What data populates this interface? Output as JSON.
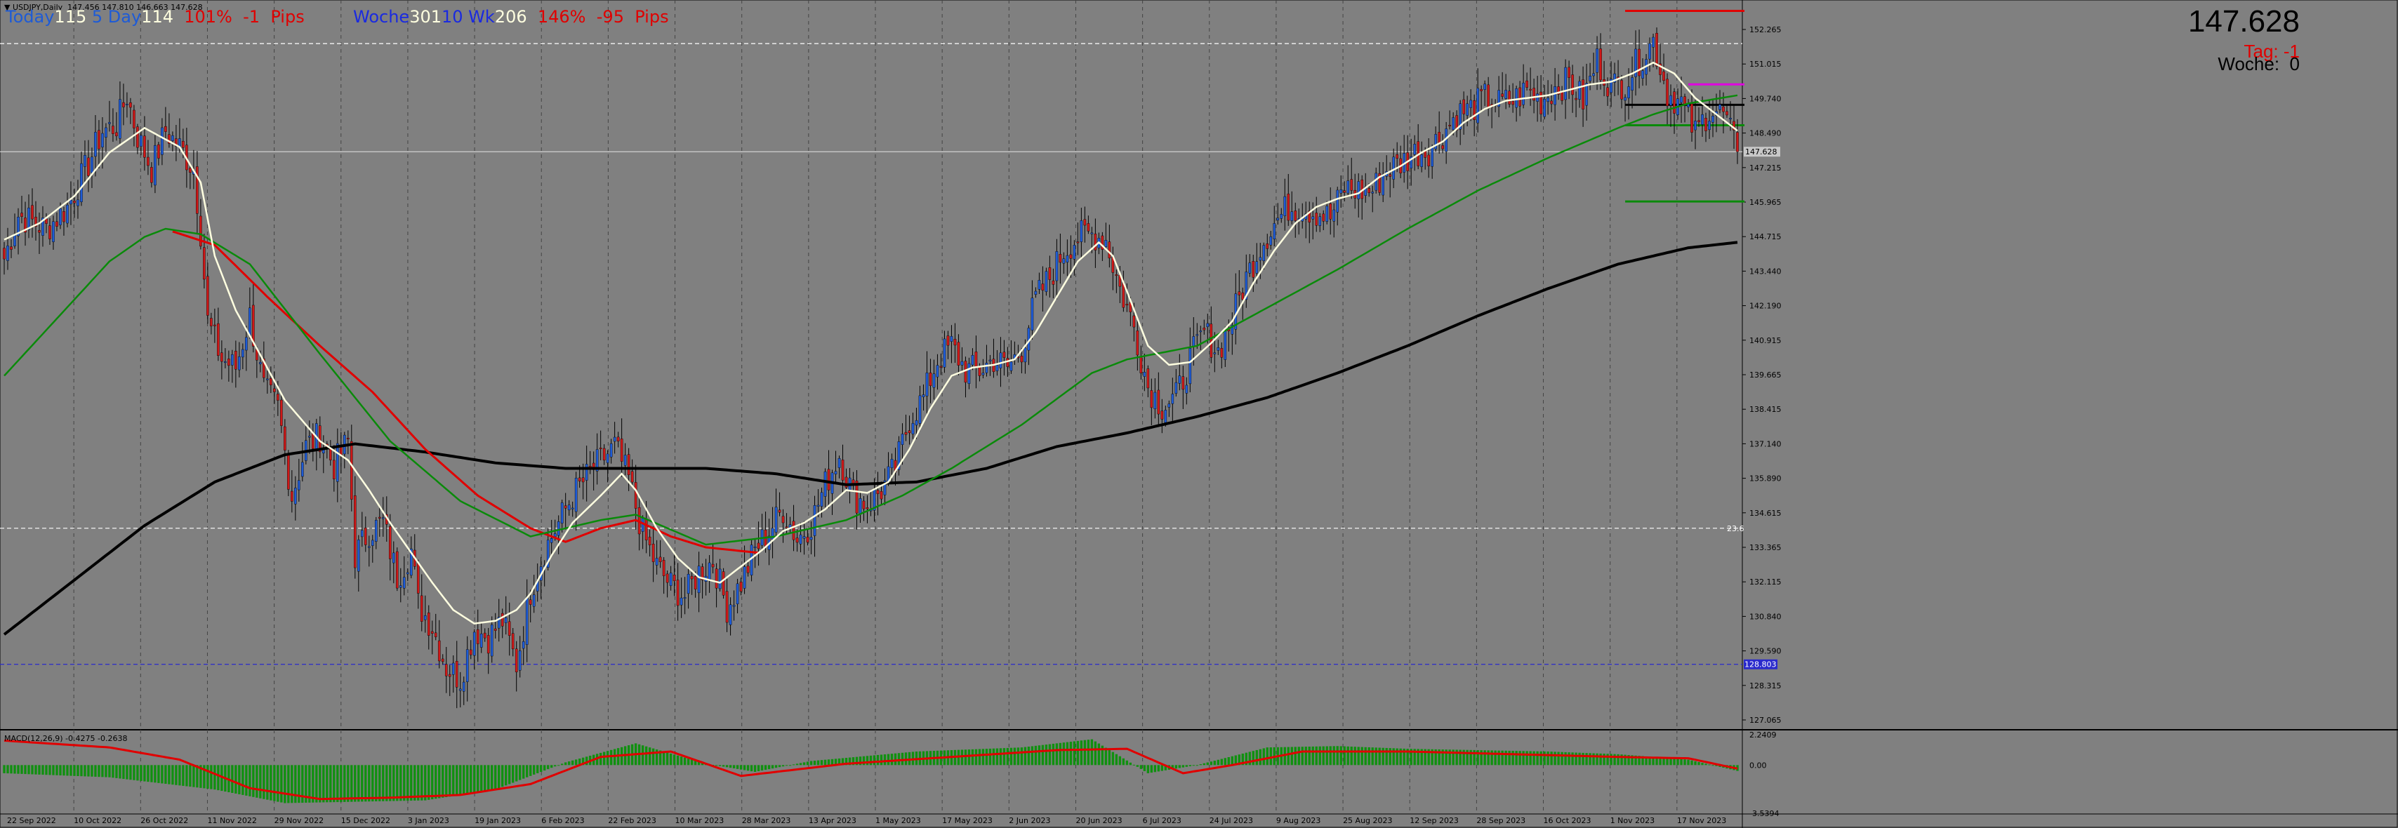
{
  "header": {
    "symbol_line": "▼ USDJPY,Daily  147.456 147.810 146.663 147.628",
    "today_label": "Today",
    "today_value": "115",
    "five_day_label": "5 Day",
    "five_day_value": "114",
    "today_pct": "101%",
    "today_pips": "-1",
    "pips_label": "Pips",
    "woche_label": "Woche",
    "woche_value": "301",
    "ten_wk_label": "10 Wk",
    "ten_wk_value": "206",
    "week_pct": "146%",
    "week_pips": "-95",
    "pips_label2": "Pips"
  },
  "right_panel": {
    "price": "147.628",
    "tag_text": "Tag: -1",
    "woche_text": "Woche:  0"
  },
  "macd_label": "MACD(12,26,9) -0.4275 -0.2638",
  "colors": {
    "background": "#808080",
    "bull": "#1e5bd6",
    "bear": "#d01818",
    "ma_fast": "#ffffe0",
    "ma_mid": "#0a8a0a",
    "ma_red": "#e00000",
    "ma_long": "#000000",
    "macd_hist": "#109010",
    "macd_signal": "#e00000"
  },
  "chart_data": {
    "type": "candlestick",
    "symbol": "USDJPY",
    "timeframe": "Daily",
    "last_price": 147.628,
    "ylim": [
      126.4,
      153.2
    ],
    "y_ticks": [
      "152.265",
      "151.015",
      "149.740",
      "148.490",
      "147.215",
      "145.965",
      "144.715",
      "143.440",
      "142.190",
      "140.915",
      "139.665",
      "138.415",
      "137.140",
      "135.890",
      "134.615",
      "133.365",
      "132.115",
      "130.840",
      "129.590",
      "128.315",
      "127.065"
    ],
    "x_ticks": [
      "22 Sep 2022",
      "10 Oct 2022",
      "26 Oct 2022",
      "11 Nov 2022",
      "29 Nov 2022",
      "15 Dec 2022",
      "3 Jan 2023",
      "19 Jan 2023",
      "6 Feb 2023",
      "22 Feb 2023",
      "10 Mar 2023",
      "28 Mar 2023",
      "13 Apr 2023",
      "1 May 2023",
      "17 May 2023",
      "2 Jun 2023",
      "20 Jun 2023",
      "6 Jul 2023",
      "24 Jul 2023",
      "9 Aug 2023",
      "25 Aug 2023",
      "12 Sep 2023",
      "28 Sep 2023",
      "16 Oct 2023",
      "1 Nov 2023",
      "17 Nov 2023"
    ],
    "price_path_anchors": [
      [
        0,
        143.7
      ],
      [
        4,
        145.3
      ],
      [
        12,
        144.8
      ],
      [
        18,
        145.6
      ],
      [
        24,
        147.2
      ],
      [
        28,
        148.4
      ],
      [
        32,
        148.6
      ],
      [
        35,
        149.7
      ],
      [
        38,
        148.2
      ],
      [
        42,
        147.0
      ],
      [
        46,
        148.4
      ],
      [
        50,
        147.8
      ],
      [
        54,
        147.0
      ],
      [
        56,
        144.7
      ],
      [
        58,
        141.4
      ],
      [
        62,
        140.0
      ],
      [
        66,
        139.7
      ],
      [
        70,
        141.6
      ],
      [
        74,
        138.9
      ],
      [
        78,
        138.2
      ],
      [
        82,
        135.0
      ],
      [
        86,
        136.8
      ],
      [
        90,
        137.2
      ],
      [
        94,
        136.1
      ],
      [
        98,
        137.0
      ],
      [
        100,
        132.8
      ],
      [
        104,
        133.7
      ],
      [
        108,
        134.0
      ],
      [
        112,
        132.0
      ],
      [
        116,
        133.0
      ],
      [
        118,
        131.0
      ],
      [
        122,
        130.2
      ],
      [
        126,
        128.7
      ],
      [
        130,
        128.3
      ],
      [
        134,
        130.1
      ],
      [
        138,
        129.8
      ],
      [
        142,
        130.4
      ],
      [
        146,
        128.8
      ],
      [
        150,
        131.5
      ],
      [
        154,
        133.0
      ],
      [
        158,
        134.0
      ],
      [
        162,
        135.0
      ],
      [
        168,
        136.0
      ],
      [
        174,
        136.8
      ],
      [
        178,
        135.6
      ],
      [
        182,
        133.6
      ],
      [
        186,
        132.4
      ],
      [
        190,
        131.7
      ],
      [
        194,
        131.3
      ],
      [
        198,
        132.2
      ],
      [
        202,
        132.6
      ],
      [
        206,
        130.9
      ],
      [
        210,
        131.8
      ],
      [
        214,
        133.0
      ],
      [
        218,
        133.7
      ],
      [
        222,
        134.5
      ],
      [
        226,
        133.4
      ],
      [
        230,
        134.0
      ],
      [
        234,
        135.4
      ],
      [
        238,
        136.5
      ],
      [
        242,
        135.0
      ],
      [
        246,
        134.7
      ],
      [
        250,
        135.2
      ],
      [
        254,
        136.0
      ],
      [
        258,
        137.8
      ],
      [
        262,
        138.6
      ],
      [
        266,
        140.0
      ],
      [
        270,
        140.5
      ],
      [
        274,
        139.6
      ],
      [
        278,
        139.6
      ],
      [
        282,
        140.0
      ],
      [
        286,
        139.7
      ],
      [
        290,
        140.4
      ],
      [
        294,
        142.2
      ],
      [
        298,
        143.0
      ],
      [
        302,
        144.0
      ],
      [
        306,
        144.5
      ],
      [
        310,
        144.6
      ],
      [
        314,
        144.4
      ],
      [
        318,
        142.6
      ],
      [
        322,
        141.2
      ],
      [
        326,
        139.0
      ],
      [
        330,
        138.3
      ],
      [
        334,
        138.6
      ],
      [
        338,
        140.0
      ],
      [
        342,
        141.0
      ],
      [
        346,
        140.3
      ],
      [
        350,
        141.5
      ],
      [
        354,
        143.0
      ],
      [
        358,
        144.2
      ],
      [
        362,
        145.0
      ],
      [
        366,
        145.6
      ],
      [
        370,
        145.6
      ],
      [
        374,
        145.4
      ],
      [
        378,
        145.2
      ],
      [
        382,
        146.3
      ],
      [
        386,
        146.2
      ],
      [
        390,
        146.2
      ],
      [
        394,
        147.0
      ],
      [
        398,
        147.2
      ],
      [
        402,
        147.6
      ],
      [
        406,
        147.7
      ],
      [
        410,
        148.3
      ],
      [
        414,
        149.0
      ],
      [
        418,
        149.2
      ],
      [
        422,
        149.6
      ],
      [
        426,
        149.4
      ],
      [
        430,
        149.5
      ],
      [
        434,
        149.9
      ],
      [
        438,
        149.5
      ],
      [
        442,
        150.0
      ],
      [
        446,
        150.2
      ],
      [
        450,
        149.5
      ],
      [
        454,
        151.0
      ],
      [
        458,
        150.0
      ],
      [
        462,
        150.2
      ],
      [
        466,
        151.0
      ],
      [
        470,
        151.7
      ],
      [
        474,
        149.8
      ],
      [
        478,
        149.4
      ],
      [
        482,
        148.3
      ],
      [
        486,
        149.2
      ],
      [
        490,
        149.0
      ],
      [
        494,
        147.6
      ]
    ],
    "ma_fast_anchors": [
      [
        0,
        144.4
      ],
      [
        10,
        145.0
      ],
      [
        20,
        146.0
      ],
      [
        30,
        147.6
      ],
      [
        40,
        148.5
      ],
      [
        50,
        147.8
      ],
      [
        56,
        146.5
      ],
      [
        60,
        143.8
      ],
      [
        66,
        141.8
      ],
      [
        72,
        140.4
      ],
      [
        80,
        138.5
      ],
      [
        90,
        137.0
      ],
      [
        98,
        136.3
      ],
      [
        104,
        135.2
      ],
      [
        110,
        134.0
      ],
      [
        116,
        132.9
      ],
      [
        122,
        131.8
      ],
      [
        128,
        130.8
      ],
      [
        134,
        130.3
      ],
      [
        140,
        130.4
      ],
      [
        146,
        130.8
      ],
      [
        150,
        131.4
      ],
      [
        156,
        132.8
      ],
      [
        162,
        134.0
      ],
      [
        170,
        135.0
      ],
      [
        176,
        135.8
      ],
      [
        180,
        135.2
      ],
      [
        186,
        133.8
      ],
      [
        192,
        132.7
      ],
      [
        198,
        132.0
      ],
      [
        204,
        131.8
      ],
      [
        210,
        132.4
      ],
      [
        216,
        133.0
      ],
      [
        222,
        133.7
      ],
      [
        228,
        134.0
      ],
      [
        234,
        134.5
      ],
      [
        240,
        135.2
      ],
      [
        246,
        135.1
      ],
      [
        252,
        135.5
      ],
      [
        258,
        136.7
      ],
      [
        264,
        138.2
      ],
      [
        270,
        139.4
      ],
      [
        276,
        139.7
      ],
      [
        282,
        139.8
      ],
      [
        288,
        140.0
      ],
      [
        294,
        141.0
      ],
      [
        300,
        142.3
      ],
      [
        306,
        143.6
      ],
      [
        312,
        144.3
      ],
      [
        316,
        143.8
      ],
      [
        320,
        142.5
      ],
      [
        326,
        140.5
      ],
      [
        332,
        139.8
      ],
      [
        338,
        139.9
      ],
      [
        344,
        140.6
      ],
      [
        350,
        141.4
      ],
      [
        356,
        142.8
      ],
      [
        362,
        144.0
      ],
      [
        368,
        145.0
      ],
      [
        374,
        145.6
      ],
      [
        380,
        145.9
      ],
      [
        386,
        146.1
      ],
      [
        392,
        146.7
      ],
      [
        398,
        147.1
      ],
      [
        404,
        147.6
      ],
      [
        410,
        148.0
      ],
      [
        416,
        148.7
      ],
      [
        422,
        149.2
      ],
      [
        428,
        149.5
      ],
      [
        434,
        149.6
      ],
      [
        440,
        149.7
      ],
      [
        446,
        149.9
      ],
      [
        452,
        150.1
      ],
      [
        458,
        150.2
      ],
      [
        464,
        150.5
      ],
      [
        470,
        150.9
      ],
      [
        476,
        150.5
      ],
      [
        482,
        149.6
      ],
      [
        488,
        149.0
      ],
      [
        494,
        148.4
      ]
    ],
    "ma_mid_anchors": [
      [
        0,
        139.4
      ],
      [
        10,
        140.8
      ],
      [
        20,
        142.2
      ],
      [
        30,
        143.6
      ],
      [
        40,
        144.5
      ],
      [
        46,
        144.8
      ],
      [
        56,
        144.6
      ],
      [
        70,
        143.5
      ],
      [
        90,
        140.2
      ],
      [
        110,
        137.0
      ],
      [
        130,
        134.8
      ],
      [
        150,
        133.5
      ],
      [
        170,
        134.1
      ],
      [
        180,
        134.3
      ],
      [
        200,
        133.2
      ],
      [
        220,
        133.5
      ],
      [
        240,
        134.1
      ],
      [
        256,
        135.0
      ],
      [
        270,
        136.0
      ],
      [
        290,
        137.6
      ],
      [
        310,
        139.5
      ],
      [
        320,
        140.0
      ],
      [
        340,
        140.5
      ],
      [
        360,
        141.9
      ],
      [
        380,
        143.3
      ],
      [
        400,
        144.8
      ],
      [
        420,
        146.2
      ],
      [
        440,
        147.4
      ],
      [
        460,
        148.5
      ],
      [
        470,
        149.0
      ],
      [
        480,
        149.4
      ],
      [
        494,
        149.7
      ]
    ],
    "ma_red_anchors": [
      [
        48,
        144.7
      ],
      [
        60,
        144.2
      ],
      [
        75,
        142.3
      ],
      [
        90,
        140.5
      ],
      [
        105,
        138.8
      ],
      [
        120,
        136.7
      ],
      [
        135,
        135.0
      ],
      [
        150,
        133.8
      ],
      [
        160,
        133.3
      ],
      [
        170,
        133.8
      ],
      [
        180,
        134.1
      ],
      [
        190,
        133.5
      ],
      [
        200,
        133.1
      ],
      [
        215,
        132.9
      ]
    ],
    "ma_long_anchors": [
      [
        0,
        129.9
      ],
      [
        20,
        131.9
      ],
      [
        40,
        133.9
      ],
      [
        60,
        135.5
      ],
      [
        80,
        136.5
      ],
      [
        100,
        136.9
      ],
      [
        120,
        136.6
      ],
      [
        140,
        136.2
      ],
      [
        160,
        136.0
      ],
      [
        180,
        136.0
      ],
      [
        200,
        136.0
      ],
      [
        220,
        135.8
      ],
      [
        240,
        135.4
      ],
      [
        260,
        135.5
      ],
      [
        280,
        136.0
      ],
      [
        300,
        136.8
      ],
      [
        320,
        137.3
      ],
      [
        340,
        137.9
      ],
      [
        360,
        138.6
      ],
      [
        380,
        139.5
      ],
      [
        400,
        140.5
      ],
      [
        420,
        141.6
      ],
      [
        440,
        142.6
      ],
      [
        460,
        143.5
      ],
      [
        480,
        144.1
      ],
      [
        494,
        144.3
      ]
    ],
    "levels": [
      {
        "price": 152.8,
        "color": "#e00000",
        "from": 462,
        "to": 494
      },
      {
        "price": 151.6,
        "color": "#ffffff",
        "dashed": true
      },
      {
        "price": 150.1,
        "color": "#e000e0",
        "from": 480,
        "to": 494
      },
      {
        "price": 149.35,
        "color": "#000000",
        "from": 462,
        "to": 494
      },
      {
        "price": 148.6,
        "color": "#0a8a0a",
        "from": 462,
        "to": 494
      },
      {
        "price": 147.628,
        "color": "#d0d0d0",
        "dashed": false
      },
      {
        "price": 145.8,
        "color": "#0a8a0a",
        "from": 462,
        "to": 494
      },
      {
        "price": 133.8,
        "color": "#ffffff",
        "dashed": true,
        "label": "23.6"
      },
      {
        "price": 128.803,
        "color": "#2a2acc",
        "dashed": true,
        "label": "128.803"
      }
    ],
    "macd": {
      "label": "MACD(12,26,9) -0.4275 -0.2638",
      "ylim": [
        -3.6,
        2.6
      ],
      "y_ticks": [
        "2.2409",
        "0.00",
        "-3.5394"
      ],
      "hist_anchors": [
        [
          0,
          -0.6
        ],
        [
          30,
          -0.9
        ],
        [
          60,
          -1.8
        ],
        [
          80,
          -2.8
        ],
        [
          100,
          -2.7
        ],
        [
          120,
          -2.6
        ],
        [
          140,
          -1.8
        ],
        [
          160,
          0.2
        ],
        [
          180,
          1.6
        ],
        [
          200,
          0.1
        ],
        [
          214,
          -0.5
        ],
        [
          230,
          0.3
        ],
        [
          260,
          1.0
        ],
        [
          290,
          1.3
        ],
        [
          310,
          1.9
        ],
        [
          326,
          -0.6
        ],
        [
          340,
          0.0
        ],
        [
          360,
          1.3
        ],
        [
          380,
          1.4
        ],
        [
          400,
          1.2
        ],
        [
          420,
          1.1
        ],
        [
          440,
          1.0
        ],
        [
          460,
          0.8
        ],
        [
          470,
          0.6
        ],
        [
          480,
          0.4
        ],
        [
          494,
          -0.43
        ]
      ],
      "signal_anchors": [
        [
          0,
          1.8
        ],
        [
          30,
          1.3
        ],
        [
          50,
          0.4
        ],
        [
          70,
          -1.7
        ],
        [
          90,
          -2.5
        ],
        [
          110,
          -2.4
        ],
        [
          130,
          -2.2
        ],
        [
          150,
          -1.4
        ],
        [
          170,
          0.6
        ],
        [
          190,
          1.0
        ],
        [
          210,
          -0.8
        ],
        [
          240,
          0.1
        ],
        [
          270,
          0.6
        ],
        [
          300,
          1.1
        ],
        [
          320,
          1.2
        ],
        [
          336,
          -0.6
        ],
        [
          350,
          0.0
        ],
        [
          370,
          1.0
        ],
        [
          400,
          1.0
        ],
        [
          430,
          0.8
        ],
        [
          460,
          0.6
        ],
        [
          480,
          0.5
        ],
        [
          494,
          -0.26
        ]
      ]
    }
  }
}
